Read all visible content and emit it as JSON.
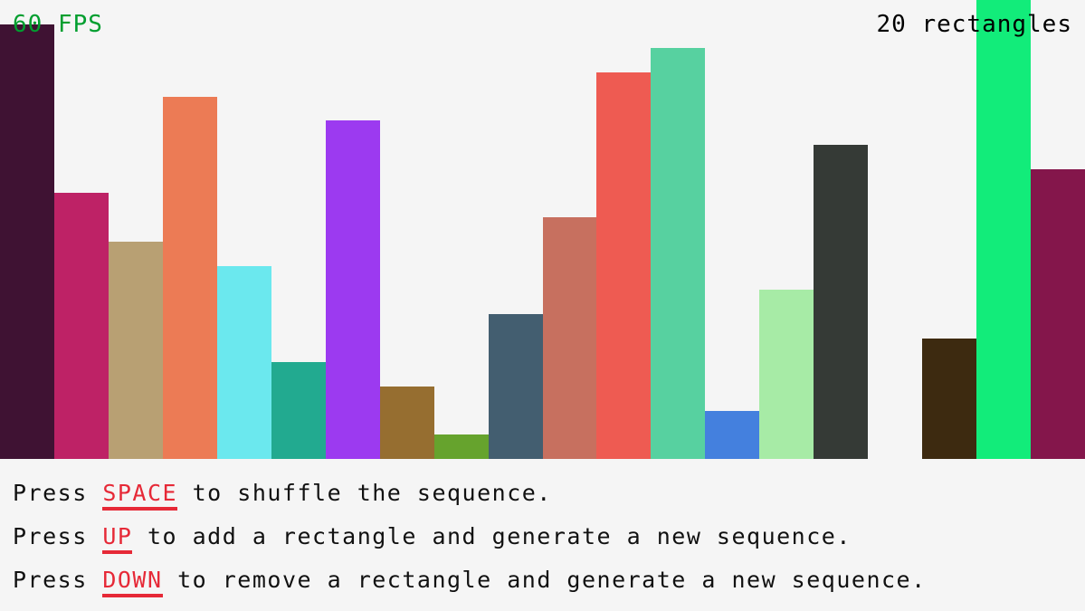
{
  "hud": {
    "fps": "60 FPS",
    "count": "20 rectangles"
  },
  "bars": {
    "max_value": 19,
    "items": [
      {
        "value": 18,
        "color": "#3f1233"
      },
      {
        "value": 11,
        "color": "#be2266"
      },
      {
        "value": 9,
        "color": "#b8a073"
      },
      {
        "value": 15,
        "color": "#ec7b55"
      },
      {
        "value": 8,
        "color": "#6be8ee"
      },
      {
        "value": 4,
        "color": "#22aa90"
      },
      {
        "value": 14,
        "color": "#9c3af0"
      },
      {
        "value": 3,
        "color": "#966e30"
      },
      {
        "value": 1,
        "color": "#66a32d"
      },
      {
        "value": 6,
        "color": "#435e70"
      },
      {
        "value": 10,
        "color": "#c7705f"
      },
      {
        "value": 16,
        "color": "#ee5b52"
      },
      {
        "value": 17,
        "color": "#57d1a0"
      },
      {
        "value": 2,
        "color": "#4480de"
      },
      {
        "value": 7,
        "color": "#a7eba6"
      },
      {
        "value": 13,
        "color": "#353a36"
      },
      {
        "value": 0,
        "color": "#f5f5f5"
      },
      {
        "value": 5,
        "color": "#3d2a10"
      },
      {
        "value": 19,
        "color": "#12ec7a"
      },
      {
        "value": 12,
        "color": "#84164b"
      }
    ]
  },
  "instructions": [
    {
      "pre": "Press ",
      "key": "SPACE",
      "post": " to shuffle the sequence."
    },
    {
      "pre": "Press ",
      "key": "UP",
      "post": " to add a rectangle and generate a new sequence."
    },
    {
      "pre": "Press ",
      "key": "DOWN",
      "post": " to remove a rectangle and generate a new sequence."
    }
  ]
}
